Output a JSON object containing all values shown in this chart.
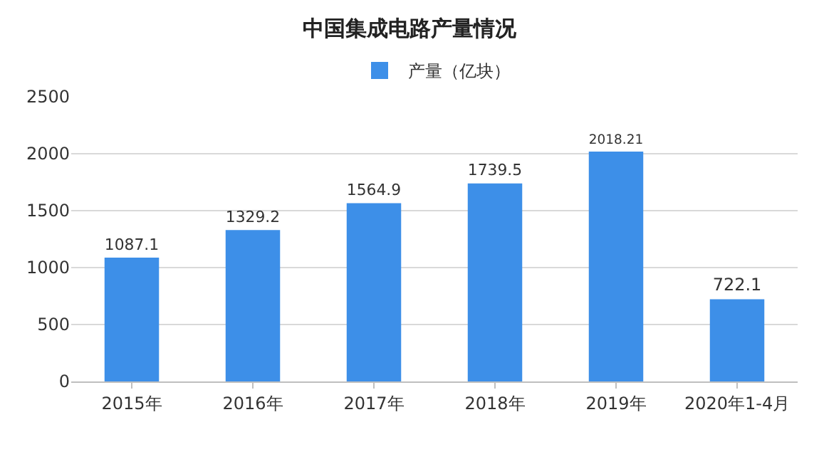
{
  "chart_data": {
    "type": "bar",
    "title": "中国集成电路产量情况",
    "categories": [
      "2015年",
      "2016年",
      "2017年",
      "2018年",
      "2019年",
      "2020年1-4月"
    ],
    "series": [
      {
        "name": "产量（亿块）",
        "color": "#3d8fe8",
        "values": [
          1087.1,
          1329.2,
          1564.9,
          1739.5,
          2018.21,
          722.1
        ]
      }
    ],
    "ylim": [
      0,
      2500
    ],
    "yticks": [
      0,
      500,
      1000,
      1500,
      2000,
      2500
    ],
    "grid": "y",
    "legend": "top",
    "data_labels": true
  }
}
